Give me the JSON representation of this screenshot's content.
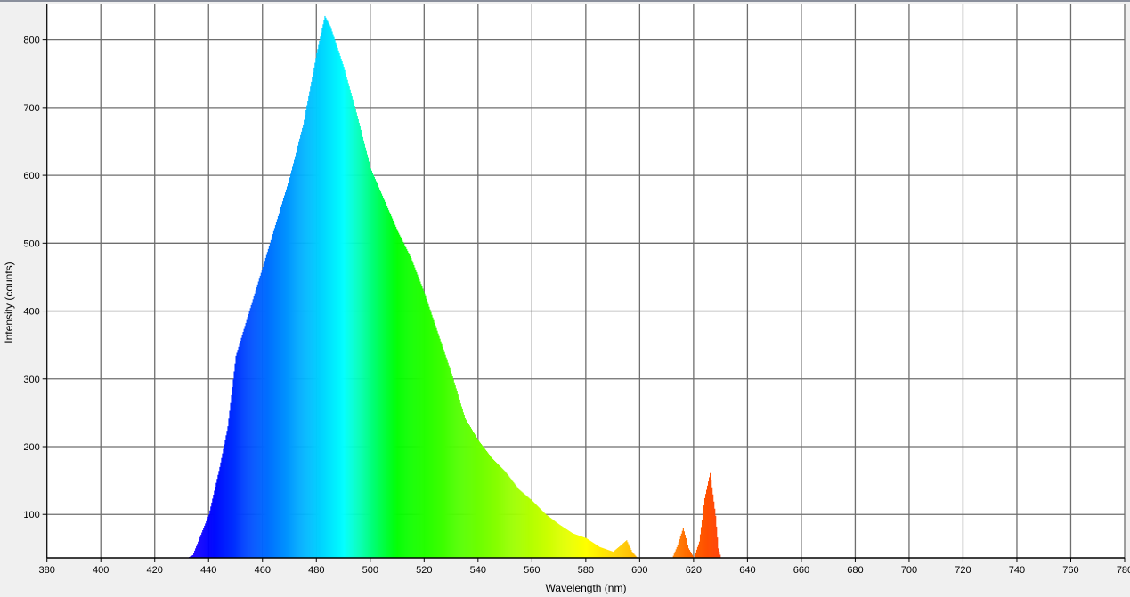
{
  "chart_data": {
    "type": "bar",
    "title": "",
    "xlabel": "Wavelength (nm)",
    "ylabel": "Intensity (counts)",
    "xlim": [
      380,
      780
    ],
    "ylim": [
      36,
      852
    ],
    "grid": true,
    "legend": "none",
    "color_mapping": "bars colored by visible-spectrum wavelength",
    "x_ticks": [
      "380",
      "400",
      "420",
      "440",
      "460",
      "480",
      "500",
      "520",
      "540",
      "560",
      "580",
      "600",
      "620",
      "640",
      "660",
      "680",
      "700",
      "720",
      "740",
      "760",
      "780"
    ],
    "y_ticks": [
      "100",
      "200",
      "300",
      "400",
      "500",
      "600",
      "700",
      "800"
    ],
    "x": [
      432,
      434,
      437,
      440,
      444,
      447,
      450,
      455,
      460,
      465,
      470,
      475,
      480,
      483,
      485,
      490,
      495,
      500,
      505,
      510,
      515,
      520,
      525,
      530,
      535,
      540,
      545,
      550,
      555,
      560,
      565,
      570,
      575,
      580,
      585,
      590,
      593,
      595,
      597,
      599,
      600,
      612,
      614,
      616,
      618,
      620,
      622,
      624,
      626,
      628,
      629,
      630
    ],
    "y": [
      36,
      40,
      70,
      100,
      170,
      230,
      334,
      400,
      465,
      531,
      597,
      675,
      780,
      835,
      820,
      760,
      688,
      610,
      564,
      518,
      478,
      426,
      367,
      308,
      242,
      209,
      183,
      163,
      137,
      120,
      100,
      85,
      72,
      65,
      52,
      45,
      55,
      62,
      45,
      36,
      36,
      36,
      55,
      80,
      50,
      36,
      60,
      124,
      161,
      98,
      50,
      36
    ]
  }
}
